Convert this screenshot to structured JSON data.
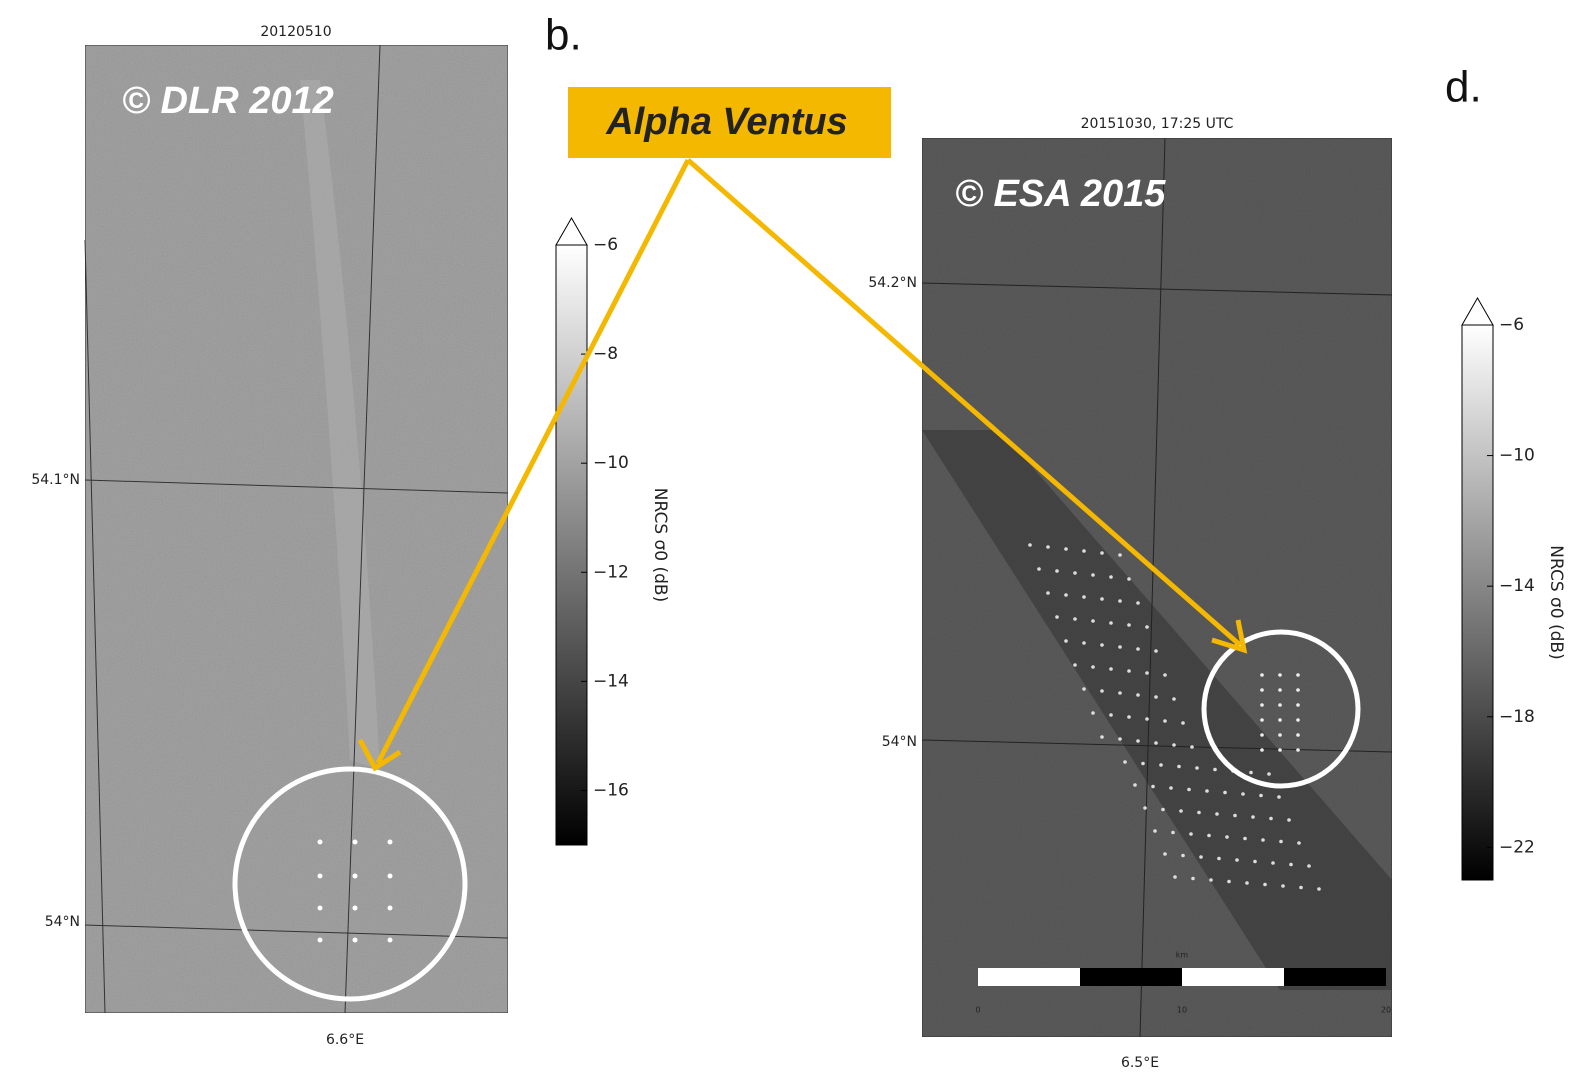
{
  "annotation": "Alpha Ventus",
  "panel_letters": [
    "b.",
    "d."
  ],
  "panels": [
    {
      "title": "20120510",
      "copyright": "© DLR 2012",
      "lat_labels": [
        "54.1°N",
        "54°N"
      ],
      "lon_label": "6.6°E",
      "colorbar": {
        "label": "NRCS σ0 (dB)",
        "lim": [
          -17,
          -6
        ],
        "ticks": [
          {
            "value": -6,
            "label": "−6"
          },
          {
            "value": -8,
            "label": "−8"
          },
          {
            "value": -10,
            "label": "−10"
          },
          {
            "value": -12,
            "label": "−12"
          },
          {
            "value": -14,
            "label": "−14"
          },
          {
            "value": -16,
            "label": "−16"
          }
        ]
      }
    },
    {
      "title": "20151030, 17:25 UTC",
      "copyright": "© ESA 2015",
      "lat_labels": [
        "54.2°N",
        "54°N"
      ],
      "lon_label": "6.5°E",
      "scale_bar": {
        "unit": "km",
        "ticks": [
          "0",
          "10",
          "20"
        ]
      },
      "colorbar": {
        "label": "NRCS σ0 (dB)",
        "lim": [
          -23,
          -6
        ],
        "ticks": [
          {
            "value": -6,
            "label": "−6"
          },
          {
            "value": -10,
            "label": "−10"
          },
          {
            "value": -14,
            "label": "−14"
          },
          {
            "value": -18,
            "label": "−18"
          },
          {
            "value": -22,
            "label": "−22"
          }
        ]
      }
    }
  ]
}
